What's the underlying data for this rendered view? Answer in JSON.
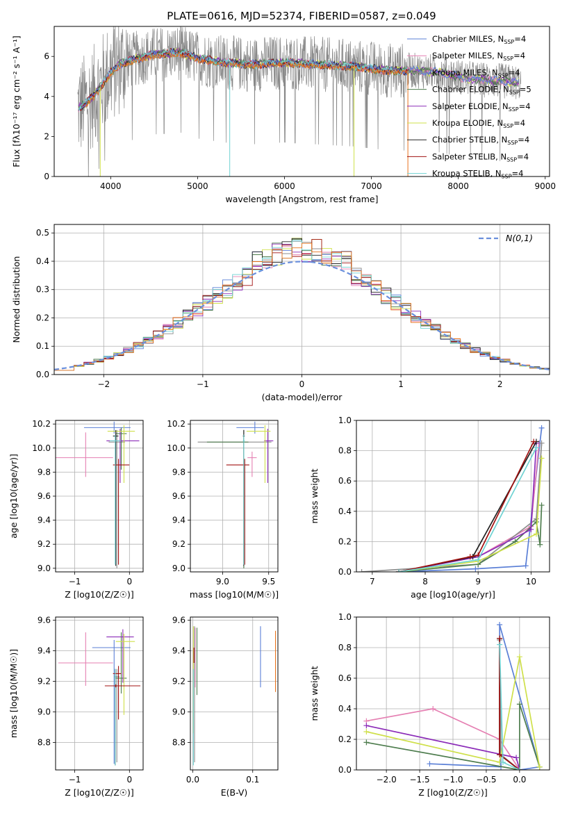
{
  "figure_title": "PLATE=0616, MJD=52374, FIBERID=0587, z=0.049",
  "models": [
    {
      "label": "Chabrier MILES, N",
      "nssp": "4",
      "color": "#5a7fd6"
    },
    {
      "label": "Salpeter MILES, N",
      "nssp": "4",
      "color": "#e57fb2"
    },
    {
      "label": "Kroupa MILES, N",
      "nssp": "4",
      "color": "#8c8c8c"
    },
    {
      "label": "Chabrier ELODIE, N",
      "nssp": "5",
      "color": "#4e7d4e"
    },
    {
      "label": "Salpeter ELODIE, N",
      "nssp": "4",
      "color": "#8b2bb8"
    },
    {
      "label": "Kroupa ELODIE, N",
      "nssp": "4",
      "color": "#cfe04a"
    },
    {
      "label": "Chabrier STELIB, N",
      "nssp": "4",
      "color": "#222222"
    },
    {
      "label": "Salpeter STELIB, N",
      "nssp": "4",
      "color": "#a01010"
    },
    {
      "label": "Kroupa STELIB, N",
      "nssp": "4",
      "color": "#6fd3d3"
    }
  ],
  "ssp_subscript": "SSP",
  "chart_data": [
    {
      "id": "spectrum",
      "type": "line",
      "xlabel": "wavelength [Angstrom, rest frame]",
      "ylabel": "Flux [fλ10⁻¹⁷ erg cm⁻² s⁻¹ A⁻¹]",
      "xlim": [
        3350,
        9050
      ],
      "ylim": [
        0,
        7.5
      ],
      "xticks": [
        4000,
        5000,
        6000,
        7000,
        8000,
        9000
      ],
      "yticks": [
        0,
        2,
        4,
        6
      ],
      "grid": false,
      "legend": "top-right",
      "continuum": [
        [
          3620,
          3.4
        ],
        [
          3700,
          3.6
        ],
        [
          3800,
          4.0
        ],
        [
          3900,
          4.6
        ],
        [
          4000,
          5.2
        ],
        [
          4100,
          5.6
        ],
        [
          4300,
          5.9
        ],
        [
          4500,
          6.1
        ],
        [
          4800,
          6.2
        ],
        [
          5000,
          5.9
        ],
        [
          5300,
          5.7
        ],
        [
          5600,
          5.6
        ],
        [
          6000,
          5.7
        ],
        [
          6400,
          5.6
        ],
        [
          6800,
          5.5
        ],
        [
          7200,
          5.3
        ],
        [
          7500,
          5.3
        ],
        [
          7800,
          5.2
        ],
        [
          8100,
          4.9
        ],
        [
          8400,
          4.8
        ],
        [
          8700,
          4.7
        ]
      ]
    },
    {
      "id": "residuals",
      "type": "histogram",
      "xlabel": "(data-model)/error",
      "ylabel": "Normed distribution",
      "xlim": [
        -2.5,
        2.5
      ],
      "ylim": [
        0,
        0.53
      ],
      "xticks": [
        -2,
        -1,
        0,
        1,
        2
      ],
      "yticks": [
        0.0,
        0.1,
        0.2,
        0.3,
        0.4,
        0.5
      ],
      "grid": true,
      "legend": "top-right",
      "legend_label": "N(0,1)",
      "bin_width": 0.1
    },
    {
      "id": "age_vs_Z",
      "type": "errorbar",
      "xlabel": "Z [log10(Z/Z☉)]",
      "ylabel": "age  [log10(age/yr)]",
      "xlim": [
        -1.35,
        0.25
      ],
      "ylim": [
        8.97,
        10.23
      ],
      "xticks": [
        -1,
        0
      ],
      "yticks": [
        9.0,
        9.2,
        9.4,
        9.6,
        9.8,
        10.0,
        10.2
      ],
      "points": [
        {
          "m": 0,
          "x": -0.28,
          "xe": [
            0.55,
            0.3
          ],
          "y": 10.17,
          "ye": [
            0.05,
            0.05
          ]
        },
        {
          "m": 1,
          "x": -0.8,
          "xe": [
            0.55,
            0.5
          ],
          "y": 9.92,
          "ye": [
            0.16,
            0.21
          ]
        },
        {
          "m": 2,
          "x": -0.23,
          "xe": [
            0.15,
            0.15
          ],
          "y": 10.05,
          "ye": [
            1.05,
            0.1
          ]
        },
        {
          "m": 3,
          "x": -0.15,
          "xe": [
            0.1,
            0.1
          ],
          "y": 10.12,
          "ye": [
            0.3,
            0.05
          ]
        },
        {
          "m": 4,
          "x": -0.17,
          "xe": [
            0.25,
            0.35
          ],
          "y": 10.06,
          "ye": [
            0.35,
            0.1
          ]
        },
        {
          "m": 5,
          "x": -0.1,
          "xe": [
            0.3,
            0.2
          ],
          "y": 10.14,
          "ye": [
            0.43,
            0.05
          ]
        },
        {
          "m": 6,
          "x": -0.25,
          "xe": [
            0.05,
            0.05
          ],
          "y": 10.1,
          "ye": [
            1.08,
            0.05
          ]
        },
        {
          "m": 7,
          "x": -0.2,
          "xe": [
            0.1,
            0.2
          ],
          "y": 9.86,
          "ye": [
            0.83,
            0.05
          ]
        },
        {
          "m": 8,
          "x": -0.26,
          "xe": [
            0.1,
            0.1
          ],
          "y": 10.06,
          "ye": [
            1.03,
            0.05
          ]
        }
      ]
    },
    {
      "id": "age_vs_mass",
      "type": "errorbar",
      "xlabel": "mass [log10(M/M☉)]",
      "ylabel": "",
      "xlim": [
        8.65,
        9.6
      ],
      "ylim": [
        8.97,
        10.23
      ],
      "xticks": [
        9.0,
        9.5
      ],
      "yticks": [
        9.0,
        9.2,
        9.4,
        9.6,
        9.8,
        10.0,
        10.2
      ],
      "points": [
        {
          "m": 0,
          "x": 9.35,
          "xe": [
            0.2,
            0.1
          ],
          "y": 10.17,
          "ye": [
            0.05,
            0.05
          ]
        },
        {
          "m": 1,
          "x": 9.32,
          "xe": [
            0.05,
            0.05
          ],
          "y": 9.92,
          "ye": [
            0.16,
            0.05
          ]
        },
        {
          "m": 2,
          "x": 9.23,
          "xe": [
            0.5,
            0.3
          ],
          "y": 10.05,
          "ye": [
            1.05,
            0.1
          ]
        },
        {
          "m": 3,
          "x": 9.23,
          "xe": [
            0.4,
            0.05
          ],
          "y": 10.05,
          "ye": [
            1.05,
            0.1
          ]
        },
        {
          "m": 4,
          "x": 9.49,
          "xe": [
            0.04,
            0.06
          ],
          "y": 10.06,
          "ye": [
            0.35,
            0.1
          ]
        },
        {
          "m": 5,
          "x": 9.46,
          "xe": [
            0.2,
            0.06
          ],
          "y": 10.14,
          "ye": [
            0.43,
            0.05
          ]
        },
        {
          "m": 6,
          "x": 9.23,
          "xe": [
            0.01,
            0.01
          ],
          "y": 10.1,
          "ye": [
            1.08,
            0.05
          ]
        },
        {
          "m": 7,
          "x": 9.24,
          "xe": [
            0.2,
            0.05
          ],
          "y": 9.86,
          "ye": [
            0.83,
            0.05
          ]
        },
        {
          "m": 8,
          "x": 9.23,
          "xe": [
            0.01,
            0.01
          ],
          "y": 10.06,
          "ye": [
            1.03,
            0.05
          ]
        }
      ]
    },
    {
      "id": "weight_vs_age",
      "type": "line",
      "xlabel": "age  [log10(age/yr)]",
      "ylabel": "mass weight",
      "xlim": [
        6.7,
        10.35
      ],
      "ylim": [
        0,
        1.0
      ],
      "xticks": [
        7,
        8,
        9,
        10
      ],
      "yticks": [
        0.0,
        0.2,
        0.4,
        0.6,
        0.8,
        1.0
      ],
      "series": [
        {
          "m": 0,
          "x": [
            7.5,
            8.95,
            9.9,
            10.2
          ],
          "y": [
            0.0,
            0.02,
            0.04,
            0.95
          ]
        },
        {
          "m": 1,
          "x": [
            7.5,
            9.0,
            10.0,
            10.15
          ],
          "y": [
            0.0,
            0.1,
            0.3,
            0.85
          ]
        },
        {
          "m": 2,
          "x": [
            6.8,
            9.0,
            10.1,
            10.2
          ],
          "y": [
            0.0,
            0.05,
            0.35,
            0.85
          ]
        },
        {
          "m": 3,
          "x": [
            7.5,
            9.0,
            9.7,
            10.1,
            10.17,
            10.2
          ],
          "y": [
            0.0,
            0.05,
            0.2,
            0.33,
            0.18,
            0.44
          ]
        },
        {
          "m": 4,
          "x": [
            7.5,
            9.0,
            10.0,
            10.1
          ],
          "y": [
            0.0,
            0.1,
            0.28,
            0.85
          ]
        },
        {
          "m": 5,
          "x": [
            7.5,
            9.0,
            10.1,
            10.2
          ],
          "y": [
            0.0,
            0.07,
            0.25,
            0.75
          ]
        },
        {
          "m": 6,
          "x": [
            7.5,
            8.9,
            10.1
          ],
          "y": [
            0.0,
            0.1,
            0.86
          ]
        },
        {
          "m": 7,
          "x": [
            7.5,
            8.85,
            9.0,
            10.05
          ],
          "y": [
            0.0,
            0.1,
            0.11,
            0.86
          ]
        },
        {
          "m": 8,
          "x": [
            7.5,
            9.0,
            10.1
          ],
          "y": [
            0.0,
            0.08,
            0.82
          ]
        }
      ]
    },
    {
      "id": "mass_vs_Z",
      "type": "errorbar",
      "xlabel": "Z [log10(Z/Z☉)]",
      "ylabel": "mass [log10(M/M☉)]",
      "xlim": [
        -1.35,
        0.25
      ],
      "ylim": [
        8.62,
        9.62
      ],
      "xticks": [
        -1,
        0
      ],
      "yticks": [
        8.8,
        9.0,
        9.2,
        9.4,
        9.6
      ],
      "points": [
        {
          "m": 0,
          "x": -0.28,
          "xe": [
            0.4,
            0.3
          ],
          "y": 9.42,
          "ye": [
            0.76,
            0.05
          ]
        },
        {
          "m": 1,
          "x": -0.8,
          "xe": [
            0.5,
            0.5
          ],
          "y": 9.32,
          "ye": [
            0.15,
            0.2
          ]
        },
        {
          "m": 2,
          "x": -0.23,
          "xe": [
            0.05,
            0.05
          ],
          "y": 9.23,
          "ye": [
            0.56,
            0.05
          ]
        },
        {
          "m": 3,
          "x": -0.15,
          "xe": [
            0.1,
            0.1
          ],
          "y": 9.22,
          "ye": [
            0.1,
            0.3
          ]
        },
        {
          "m": 4,
          "x": -0.12,
          "xe": [
            0.3,
            0.2
          ],
          "y": 9.49,
          "ye": [
            0.3,
            0.05
          ]
        },
        {
          "m": 5,
          "x": -0.1,
          "xe": [
            0.15,
            0.2
          ],
          "y": 9.46,
          "ye": [
            0.48,
            0.05
          ]
        },
        {
          "m": 6,
          "x": -0.26,
          "xe": [
            0.02,
            0.02
          ],
          "y": 9.23,
          "ye": [
            0.58,
            0.05
          ]
        },
        {
          "m": 7,
          "x": -0.2,
          "xe": [
            0.1,
            0.05
          ],
          "y": 9.25,
          "ye": [
            0.3,
            0.05
          ]
        },
        {
          "m": 8,
          "x": -0.26,
          "xe": [
            0.02,
            0.02
          ],
          "y": 9.23,
          "ye": [
            0.58,
            0.05
          ]
        },
        {
          "m": 7,
          "x": -0.25,
          "xe": [
            0.2,
            0.45
          ],
          "y": 9.17,
          "ye": [
            0.01,
            0.01
          ]
        }
      ]
    },
    {
      "id": "mass_vs_ebv",
      "type": "errorbar",
      "xlabel": "E(B-V)",
      "ylabel": "",
      "xlim": [
        -0.004,
        0.142
      ],
      "ylim": [
        8.62,
        9.62
      ],
      "xticks": [
        0.0,
        0.1
      ],
      "yticks": [
        8.8,
        9.0,
        9.2,
        9.4,
        9.6
      ],
      "points": [
        {
          "m": 0,
          "x": 0.113,
          "y": 9.36,
          "ye": [
            0.2,
            0.2
          ]
        },
        {
          "m": 1,
          "x": 0.004,
          "y": 9.3,
          "ye": [
            0.14,
            0.25
          ]
        },
        {
          "m": 2,
          "x": 0.003,
          "y": 9.23,
          "ye": [
            0.56,
            0.33
          ]
        },
        {
          "m": 3,
          "x": 0.007,
          "y": 9.33,
          "ye": [
            0.22,
            0.22
          ]
        },
        {
          "m": 5,
          "x": 0.001,
          "y": 9.36,
          "ye": [
            0.5,
            0.2
          ]
        },
        {
          "m": 7,
          "x": 0.002,
          "y": 9.37,
          "ye": [
            0.05,
            0.05
          ]
        },
        {
          "m": 8,
          "x": 0.001,
          "y": 9.23,
          "ye": [
            0.58,
            0.05
          ]
        },
        {
          "m": "orange",
          "x": 0.138,
          "y": 9.33,
          "ye": [
            0.2,
            0.2
          ]
        }
      ]
    },
    {
      "id": "weight_vs_Z",
      "type": "line",
      "xlabel": "Z [log10(Z/Z☉)]",
      "ylabel": "mass weight",
      "xlim": [
        -2.45,
        0.45
      ],
      "ylim": [
        0,
        1.0
      ],
      "xticks": [
        -2.0,
        -1.5,
        -1.0,
        -0.5,
        0.0
      ],
      "yticks": [
        0.0,
        0.2,
        0.4,
        0.6,
        0.8,
        1.0
      ],
      "series": [
        {
          "m": 0,
          "x": [
            -1.35,
            -0.28,
            -0.3,
            0.3,
            0.0
          ],
          "y": [
            0.04,
            0.02,
            0.95,
            0.02,
            0.0
          ]
        },
        {
          "m": 1,
          "x": [
            -2.3,
            -1.3,
            -0.3,
            0.0
          ],
          "y": [
            0.32,
            0.4,
            0.2,
            0.0
          ]
        },
        {
          "m": 2,
          "x": [
            -0.3,
            -0.28,
            0.0
          ],
          "y": [
            0.85,
            0.1,
            0.0
          ]
        },
        {
          "m": 3,
          "x": [
            -2.3,
            0.0,
            0.0,
            0.3
          ],
          "y": [
            0.18,
            0.0,
            0.43,
            0.02
          ]
        },
        {
          "m": 4,
          "x": [
            -2.3,
            -0.05,
            0.0
          ],
          "y": [
            0.29,
            0.08,
            0.0
          ]
        },
        {
          "m": 5,
          "x": [
            -2.3,
            -0.3,
            0.0,
            0.3
          ],
          "y": [
            0.25,
            0.05,
            0.74,
            0.02
          ]
        },
        {
          "m": 6,
          "x": [
            -0.3,
            -0.3,
            0.0
          ],
          "y": [
            0.86,
            0.1,
            0.0
          ]
        },
        {
          "m": 7,
          "x": [
            -0.3,
            -0.3,
            0.0
          ],
          "y": [
            0.86,
            0.1,
            0.0
          ]
        },
        {
          "m": 8,
          "x": [
            -0.3,
            -0.25,
            0.0
          ],
          "y": [
            0.82,
            0.05,
            0.0
          ]
        }
      ]
    }
  ]
}
